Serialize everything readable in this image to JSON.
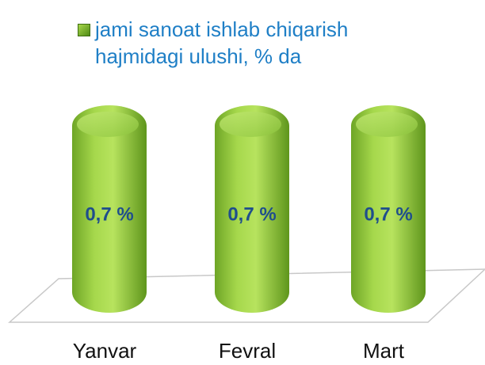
{
  "chart_data": {
    "type": "bar",
    "categories": [
      "Yanvar",
      "Fevral",
      "Mart"
    ],
    "series": [
      {
        "name": "jami sanoat ishlab chiqarish hajmidagi ulushi, % da",
        "color": "#8cc43c",
        "values": [
          0.7,
          0.7,
          0.7
        ],
        "value_labels": [
          "0,7 %",
          "0,7 %",
          "0,7 %"
        ]
      }
    ],
    "legend": "top"
  }
}
